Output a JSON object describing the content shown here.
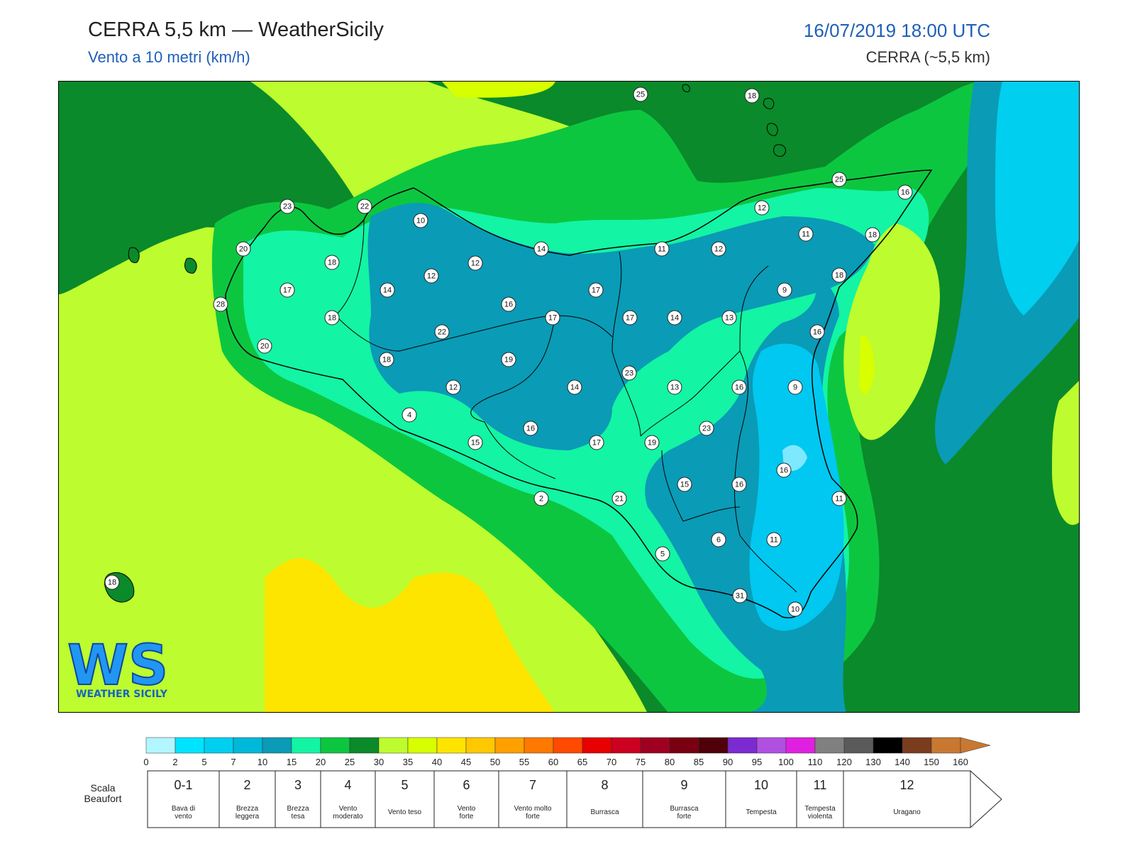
{
  "header": {
    "title": "CERRA 5,5 km — WeatherSicily",
    "subtitle": "Vento a 10 metri (km/h)",
    "datetime": "16/07/2019 18:00 UTC",
    "model": "CERRA (~5,5 km)"
  },
  "logo": {
    "text": "WEATHER SICILY",
    "letters": "WS"
  },
  "map": {
    "colors": {
      "sea_dark_green": "#0a8a2a",
      "green": "#0dc640",
      "teal": "#13f4a4",
      "blue_teal": "#0a9bb6",
      "cyan": "#00c8f0",
      "light_cyan": "#7ee8ff",
      "yellow_green": "#bdfc2e",
      "yellow": "#fee500",
      "lime": "#d7ff00"
    },
    "point_labels": [
      {
        "value": "25"
      },
      {
        "value": "18"
      },
      {
        "value": "25"
      },
      {
        "value": "16"
      },
      {
        "value": "23"
      },
      {
        "value": "22"
      },
      {
        "value": "10"
      },
      {
        "value": "12"
      },
      {
        "value": "11"
      },
      {
        "value": "18"
      },
      {
        "value": "20"
      },
      {
        "value": "18"
      },
      {
        "value": "14"
      },
      {
        "value": "11"
      },
      {
        "value": "12"
      },
      {
        "value": "12"
      },
      {
        "value": "12"
      },
      {
        "value": "18"
      },
      {
        "value": "17"
      },
      {
        "value": "14"
      },
      {
        "value": "17"
      },
      {
        "value": "9"
      },
      {
        "value": "28"
      },
      {
        "value": "18"
      },
      {
        "value": "16"
      },
      {
        "value": "17"
      },
      {
        "value": "17"
      },
      {
        "value": "14"
      },
      {
        "value": "13"
      },
      {
        "value": "22"
      },
      {
        "value": "16"
      },
      {
        "value": "20"
      },
      {
        "value": "18"
      },
      {
        "value": "19"
      },
      {
        "value": "23"
      },
      {
        "value": "12"
      },
      {
        "value": "14"
      },
      {
        "value": "13"
      },
      {
        "value": "16"
      },
      {
        "value": "9"
      },
      {
        "value": "4"
      },
      {
        "value": "16"
      },
      {
        "value": "23"
      },
      {
        "value": "15"
      },
      {
        "value": "17"
      },
      {
        "value": "19"
      },
      {
        "value": "16"
      },
      {
        "value": "2"
      },
      {
        "value": "21"
      },
      {
        "value": "15"
      },
      {
        "value": "16"
      },
      {
        "value": "11"
      },
      {
        "value": "6"
      },
      {
        "value": "11"
      },
      {
        "value": "5"
      },
      {
        "value": "18"
      },
      {
        "value": "31"
      },
      {
        "value": "5"
      },
      {
        "value": "10"
      }
    ]
  },
  "legend": {
    "colors": [
      "#b2f6ff",
      "#00e4ff",
      "#00cff0",
      "#00b8da",
      "#0a9bb6",
      "#13f4a4",
      "#0dc640",
      "#0a8a2a",
      "#bdfc2e",
      "#d7ff00",
      "#fee500",
      "#ffc800",
      "#ffa000",
      "#ff7800",
      "#ff4a00",
      "#e80000",
      "#cc0020",
      "#a00020",
      "#780010",
      "#500008",
      "#7b2bd0",
      "#b050e0",
      "#e020e0",
      "#808080",
      "#5a5a5a",
      "#000000",
      "#7a3c1e",
      "#c87830"
    ],
    "arrow_color": "#c87830",
    "ticks": [
      "0",
      "2",
      "5",
      "7",
      "10",
      "15",
      "20",
      "25",
      "30",
      "35",
      "40",
      "45",
      "50",
      "55",
      "60",
      "65",
      "70",
      "75",
      "80",
      "85",
      "90",
      "95",
      "100",
      "110",
      "120",
      "130",
      "140",
      "150",
      "160"
    ],
    "scale_label_line1": "Scala",
    "scale_label_line2": "Beaufort",
    "beaufort": [
      {
        "num": "0-1",
        "desc1": "Bava di",
        "desc2": "vento"
      },
      {
        "num": "2",
        "desc1": "Brezza",
        "desc2": "leggera"
      },
      {
        "num": "3",
        "desc1": "Brezza",
        "desc2": "tesa"
      },
      {
        "num": "4",
        "desc1": "Vento",
        "desc2": "moderato"
      },
      {
        "num": "5",
        "desc1": "Vento teso",
        "desc2": ""
      },
      {
        "num": "6",
        "desc1": "Vento",
        "desc2": "forte"
      },
      {
        "num": "7",
        "desc1": "Vento molto",
        "desc2": "forte"
      },
      {
        "num": "8",
        "desc1": "Burrasca",
        "desc2": ""
      },
      {
        "num": "9",
        "desc1": "Burrasca",
        "desc2": "forte"
      },
      {
        "num": "10",
        "desc1": "Tempesta",
        "desc2": ""
      },
      {
        "num": "11",
        "desc1": "Tempesta",
        "desc2": "violenta"
      },
      {
        "num": "12",
        "desc1": "Uragano",
        "desc2": ""
      }
    ]
  }
}
